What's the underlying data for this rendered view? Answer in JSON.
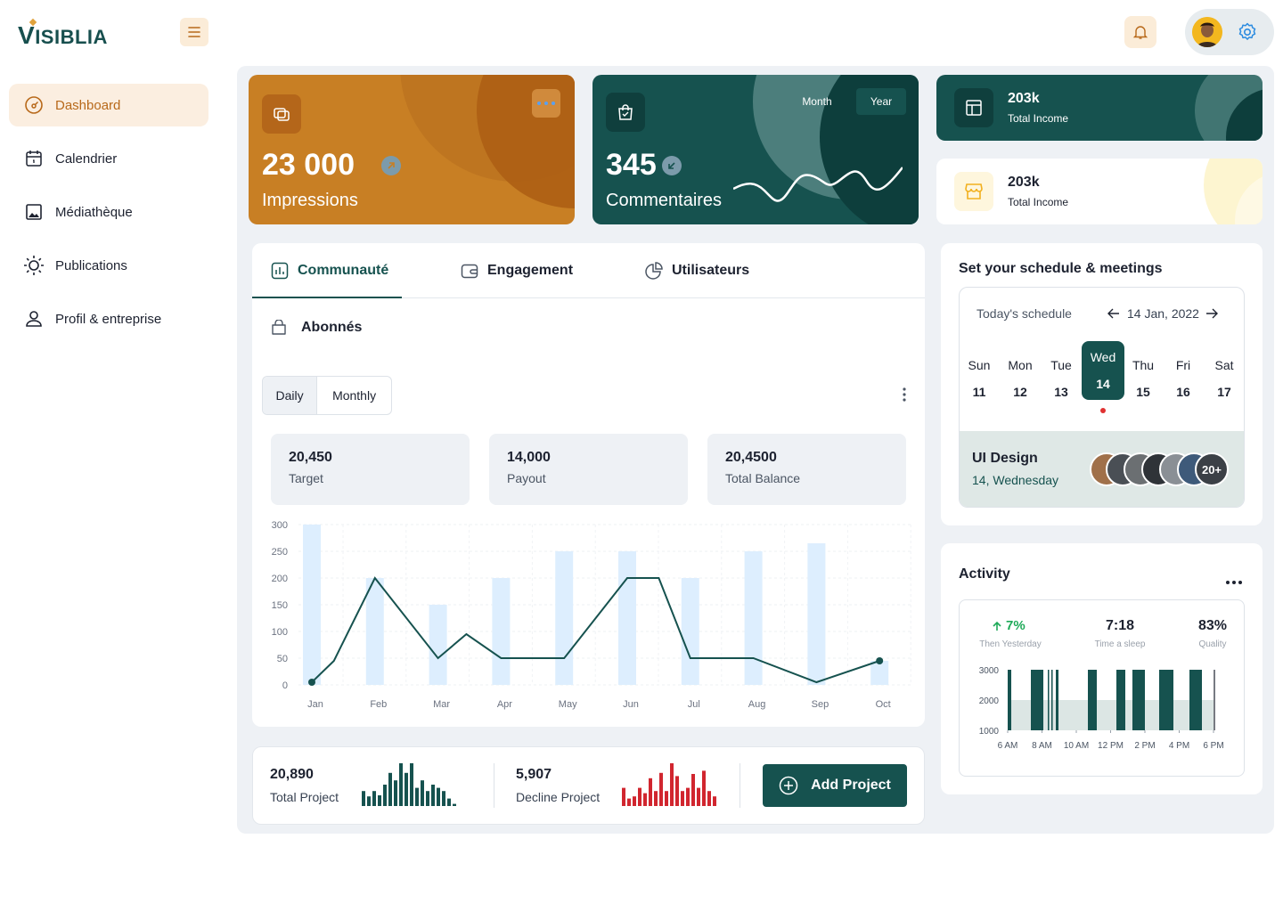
{
  "brand": {
    "name": "ISIBLIA",
    "initial": "V"
  },
  "sidebar": {
    "items": [
      {
        "label": "Dashboard",
        "icon": "dashboard-icon",
        "active": true
      },
      {
        "label": "Calendrier",
        "icon": "calendar-icon"
      },
      {
        "label": "Médiathèque",
        "icon": "image-icon"
      },
      {
        "label": "Publications",
        "icon": "sun-icon"
      },
      {
        "label": "Profil & entreprise",
        "icon": "user-icon"
      }
    ]
  },
  "cards": {
    "impressions": {
      "value": "23 000",
      "label": "Impressions"
    },
    "comments": {
      "value": "345",
      "label": "Commentaires",
      "toggle": [
        "Month",
        "Year"
      ],
      "selected": "Year"
    },
    "income1": {
      "value": "203k",
      "label": "Total Income"
    },
    "income2": {
      "value": "203k",
      "label": "Total Income"
    }
  },
  "tabs": [
    {
      "label": "Communauté",
      "icon": "bar-chart-icon",
      "active": true
    },
    {
      "label": "Engagement",
      "icon": "wallet-icon"
    },
    {
      "label": "Utilisateurs",
      "icon": "pie-chart-icon"
    }
  ],
  "section": {
    "title": "Abonnés"
  },
  "segment": {
    "daily": "Daily",
    "monthly": "Monthly",
    "selected": "Daily"
  },
  "stats": [
    {
      "value": "20,450",
      "label": "Target"
    },
    {
      "value": "14,000",
      "label": "Payout"
    },
    {
      "value": "20,4500",
      "label": "Total Balance"
    }
  ],
  "chart_data": [
    {
      "type": "line",
      "x": [
        "Jan",
        "Feb",
        "Mar",
        "Apr",
        "May",
        "Jun",
        "Jul",
        "Aug",
        "Sep",
        "Oct"
      ],
      "ylim": [
        0,
        300
      ],
      "yticks": [
        0,
        50,
        100,
        150,
        200,
        250,
        300
      ],
      "line_points": [
        [
          0,
          5
        ],
        [
          0.35,
          45
        ],
        [
          1,
          200
        ],
        [
          2,
          50
        ],
        [
          2.45,
          95
        ],
        [
          3,
          50
        ],
        [
          4,
          50
        ],
        [
          5,
          200
        ],
        [
          5.5,
          200
        ],
        [
          6,
          50
        ],
        [
          7,
          50
        ],
        [
          8,
          5
        ],
        [
          9,
          45
        ]
      ],
      "bars": [
        300,
        200,
        150,
        200,
        250,
        250,
        200,
        250,
        265,
        45
      ],
      "grid": true,
      "colors": {
        "line": "#16524f",
        "bar": "#ddeefe"
      }
    },
    {
      "type": "bar",
      "name": "Total Project",
      "values": [
        14,
        9,
        14,
        10,
        20,
        31,
        24,
        40,
        31,
        40,
        17,
        24,
        14,
        20,
        17,
        14,
        7,
        2
      ],
      "color": "#16524f"
    },
    {
      "type": "bar",
      "name": "Decline Project",
      "values": [
        17,
        7,
        9,
        17,
        12,
        26,
        14,
        31,
        14,
        40,
        28,
        14,
        17,
        30,
        17,
        33,
        14,
        9
      ],
      "color": "#d1262f"
    },
    {
      "type": "bar",
      "name": "Activity",
      "yticks": [
        1000,
        2000,
        3000
      ],
      "xticks": [
        "6 AM",
        "8 AM",
        "10 AM",
        "12 PM",
        "2 PM",
        "4 PM",
        "6 PM"
      ],
      "color": "#16524f",
      "band_color": "#dce6e4"
    }
  ],
  "bottom": {
    "total": {
      "value": "20,890",
      "label": "Total Project"
    },
    "decline": {
      "value": "5,907",
      "label": "Decline Project"
    },
    "add_button": "Add Project"
  },
  "schedule": {
    "title": "Set your schedule & meetings",
    "today_label": "Today's schedule",
    "date": "14 Jan, 2022",
    "days": [
      {
        "name": "Sun",
        "num": "11"
      },
      {
        "name": "Mon",
        "num": "12"
      },
      {
        "name": "Tue",
        "num": "13"
      },
      {
        "name": "Wed",
        "num": "14",
        "active": true
      },
      {
        "name": "Thu",
        "num": "15"
      },
      {
        "name": "Fri",
        "num": "16"
      },
      {
        "name": "Sat",
        "num": "17"
      }
    ],
    "meeting": {
      "title": "UI Design",
      "subtitle": "14, Wednesday",
      "more": "20+"
    }
  },
  "activity": {
    "title": "Activity",
    "metrics": [
      {
        "value": "7%",
        "label": "Then Yesterday",
        "color": "#1faa59"
      },
      {
        "value": "7:18",
        "label": "Time a sleep"
      },
      {
        "value": "83%",
        "label": "Quality"
      }
    ]
  }
}
